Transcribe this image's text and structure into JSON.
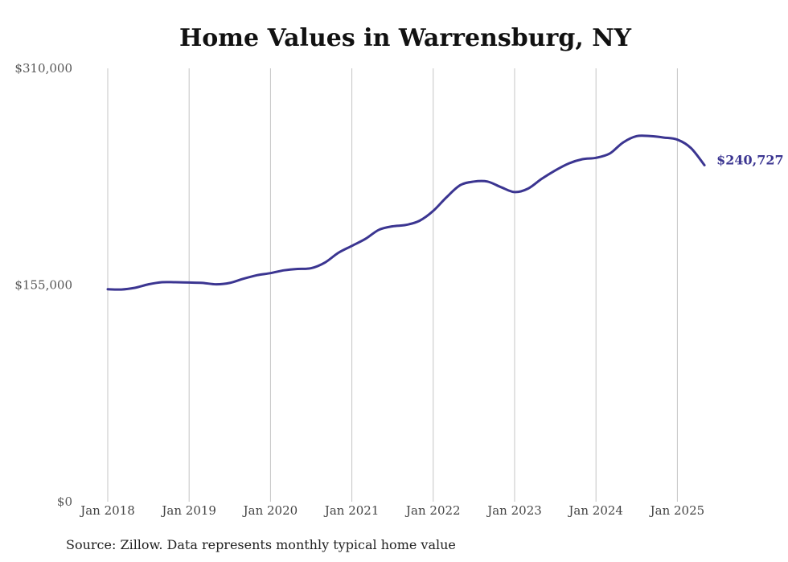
{
  "chart_data": {
    "type": "line",
    "title": "Home Values in Warrensburg, NY",
    "source": "Source: Zillow. Data represents monthly typical home value",
    "xlabel": "",
    "ylabel": "",
    "ylim": [
      0,
      310000
    ],
    "yticks": [
      0,
      155000,
      310000
    ],
    "ytick_labels": [
      "$0",
      "$155,000",
      "$310,000"
    ],
    "xlim": [
      "2018-01",
      "2025-05"
    ],
    "xticks": [
      "2018-01",
      "2019-01",
      "2020-01",
      "2021-01",
      "2022-01",
      "2023-01",
      "2024-01",
      "2025-01"
    ],
    "xtick_labels": [
      "Jan 2018",
      "Jan 2019",
      "Jan 2020",
      "Jan 2021",
      "Jan 2022",
      "Jan 2023",
      "Jan 2024",
      "Jan 2025"
    ],
    "grid": "vertical",
    "line_color": "#3b3591",
    "end_label": "$240,727",
    "series": [
      {
        "x": [
          "2018-01",
          "2018-03",
          "2018-05",
          "2018-07",
          "2018-09",
          "2018-11",
          "2019-01",
          "2019-03",
          "2019-05",
          "2019-07",
          "2019-09",
          "2019-11",
          "2020-01",
          "2020-03",
          "2020-05",
          "2020-07",
          "2020-09",
          "2020-11",
          "2021-01",
          "2021-03",
          "2021-05",
          "2021-07",
          "2021-09",
          "2021-11",
          "2022-01",
          "2022-03",
          "2022-05",
          "2022-07",
          "2022-09",
          "2022-11",
          "2023-01",
          "2023-03",
          "2023-05",
          "2023-07",
          "2023-09",
          "2023-11",
          "2024-01",
          "2024-03",
          "2024-05",
          "2024-07",
          "2024-09",
          "2024-11",
          "2025-01",
          "2025-03",
          "2025-05"
        ],
        "values": [
          152000,
          151800,
          153000,
          155500,
          157000,
          157000,
          156800,
          156500,
          155500,
          156500,
          159500,
          162000,
          163500,
          165500,
          166500,
          167000,
          171000,
          178000,
          183000,
          188000,
          194500,
          197000,
          198000,
          201000,
          208000,
          218000,
          226500,
          229000,
          229000,
          225000,
          221500,
          224000,
          231000,
          237000,
          242000,
          245000,
          246000,
          249000,
          257000,
          261500,
          261500,
          260500,
          259000,
          253000,
          240727
        ]
      }
    ]
  }
}
